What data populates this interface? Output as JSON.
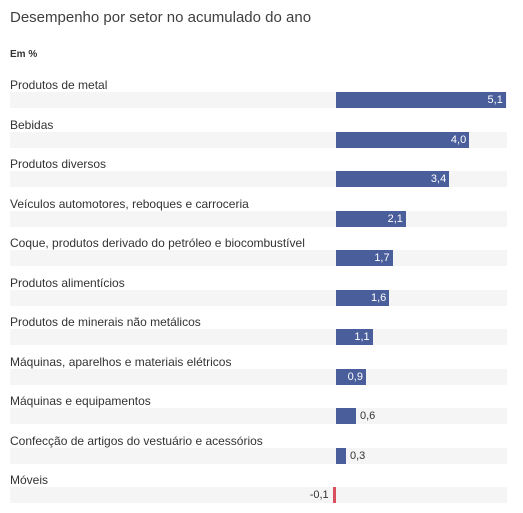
{
  "header": {
    "title": "Desempenho por setor no acumulado do ano",
    "unit": "Em %"
  },
  "colors": {
    "positive": "#4a5e9c",
    "negative": "#d9505c",
    "track": "#f5f5f5"
  },
  "chart_data": {
    "type": "bar",
    "orientation": "horizontal",
    "title": "Desempenho por setor no acumulado do ano",
    "unit": "Em %",
    "categories": [
      "Produtos de metal",
      "Bebidas",
      "Produtos diversos",
      "Veículos automotores, reboques e carroceria",
      "Coque, produtos derivado do petróleo e biocombustível",
      "Produtos alimentícios",
      "Produtos de minerais não metálicos",
      "Máquinas, aparelhos e materiais elétricos",
      "Máquinas e equipamentos",
      "Confecção de artigos do vestuário e acessórios",
      "Móveis"
    ],
    "values": [
      5.1,
      4.0,
      3.4,
      2.1,
      1.7,
      1.6,
      1.1,
      0.9,
      0.6,
      0.3,
      -0.1
    ],
    "value_labels": [
      "5,1",
      "4,0",
      "3,4",
      "2,1",
      "1,7",
      "1,6",
      "1,1",
      "0,9",
      "0,6",
      "0,3",
      "-0,1"
    ],
    "xlim": [
      -0.1,
      5.1
    ]
  }
}
